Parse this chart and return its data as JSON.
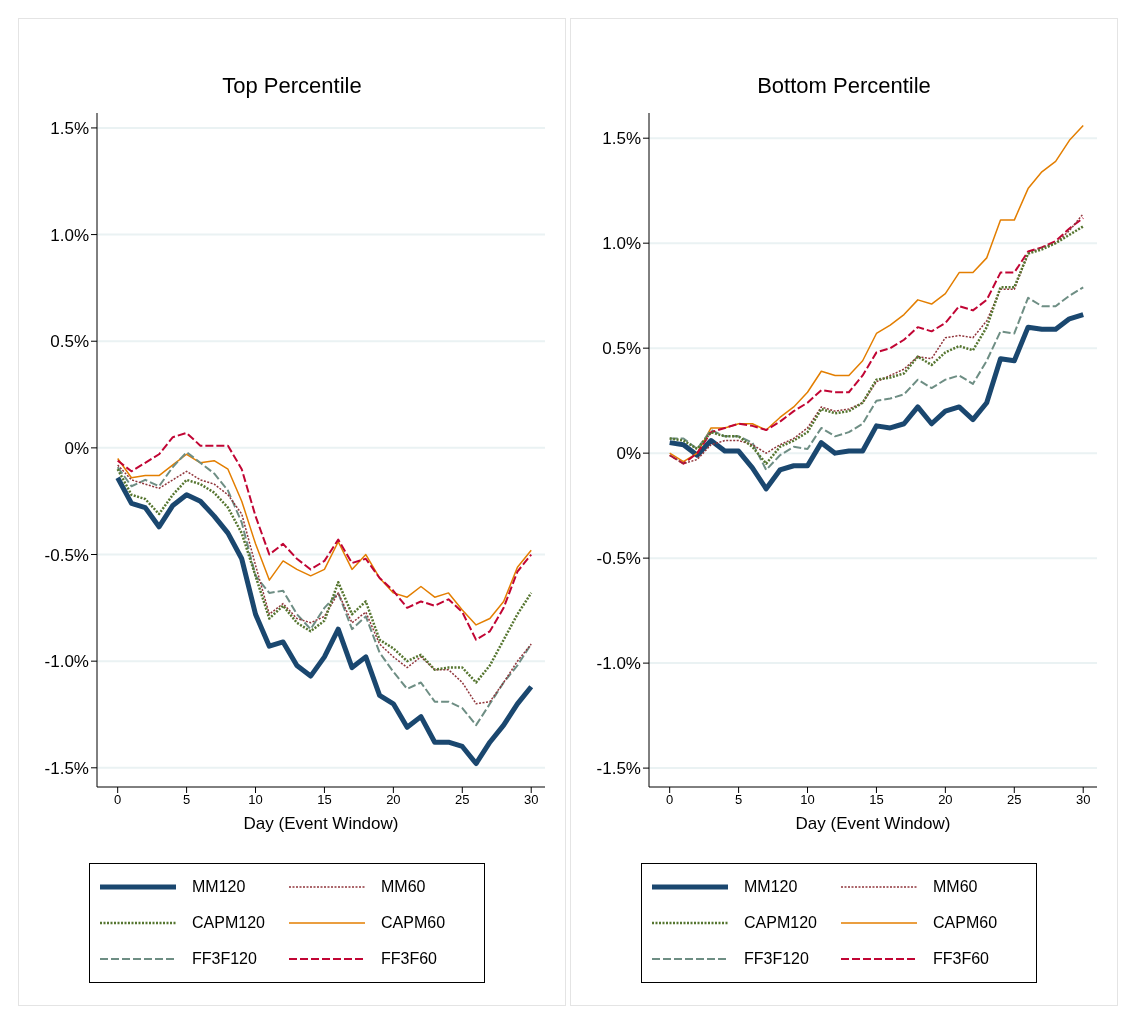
{
  "chart_data": [
    {
      "type": "line",
      "title": "Top Percentile",
      "xlabel": "Day (Event Window)",
      "x": [
        0,
        1,
        2,
        3,
        4,
        5,
        6,
        7,
        8,
        9,
        10,
        11,
        12,
        13,
        14,
        15,
        16,
        17,
        18,
        19,
        20,
        21,
        22,
        23,
        24,
        25,
        26,
        27,
        28,
        29,
        30
      ],
      "xlim": [
        -1.5,
        31
      ],
      "xticks": [
        0,
        5,
        10,
        15,
        20,
        25,
        30
      ],
      "ylim": [
        -1.59,
        1.57
      ],
      "yticks": [
        {
          "value": -1.5,
          "label": "-1.5%"
        },
        {
          "value": -1,
          "label": "-1.0%"
        },
        {
          "value": -0.5,
          "label": "-0.5%"
        },
        {
          "value": 0,
          "label": "0%"
        },
        {
          "value": 0.5,
          "label": "0.5%"
        },
        {
          "value": 1,
          "label": "1.0%"
        },
        {
          "value": 1.5,
          "label": "1.5%"
        }
      ],
      "grid": "y",
      "legend": "bottom",
      "marker": "none",
      "series": [
        {
          "name": "MM120",
          "color": "#1a476f",
          "line_style": "solid",
          "values": [
            -0.14,
            -0.26,
            -0.28,
            -0.37,
            -0.27,
            -0.22,
            -0.25,
            -0.32,
            -0.4,
            -0.52,
            -0.78,
            -0.93,
            -0.91,
            -1.02,
            -1.07,
            -0.98,
            -0.85,
            -1.03,
            -0.98,
            -1.16,
            -1.2,
            -1.31,
            -1.26,
            -1.38,
            -1.38,
            -1.4,
            -1.48,
            -1.38,
            -1.3,
            -1.2,
            -1.12
          ]
        },
        {
          "name": "MM60",
          "color": "#90353b",
          "line_style": "dotted",
          "values": [
            -0.08,
            -0.15,
            -0.17,
            -0.19,
            -0.15,
            -0.11,
            -0.15,
            -0.17,
            -0.22,
            -0.31,
            -0.55,
            -0.78,
            -0.73,
            -0.8,
            -0.82,
            -0.79,
            -0.68,
            -0.82,
            -0.77,
            -0.92,
            -0.98,
            -1.03,
            -0.98,
            -1.04,
            -1.04,
            -1.1,
            -1.2,
            -1.19,
            -1.1,
            -1.0,
            -0.92
          ]
        },
        {
          "name": "CAPM120",
          "color": "#55752f",
          "line_style": "dotted",
          "values": [
            -0.1,
            -0.22,
            -0.24,
            -0.31,
            -0.22,
            -0.15,
            -0.17,
            -0.21,
            -0.28,
            -0.4,
            -0.6,
            -0.8,
            -0.74,
            -0.82,
            -0.86,
            -0.81,
            -0.63,
            -0.78,
            -0.72,
            -0.9,
            -0.94,
            -1.0,
            -0.97,
            -1.04,
            -1.03,
            -1.03,
            -1.1,
            -1.02,
            -0.9,
            -0.78,
            -0.68
          ]
        },
        {
          "name": "CAPM60",
          "color": "#e37e00",
          "line_style": "solid",
          "values": [
            -0.05,
            -0.14,
            -0.13,
            -0.13,
            -0.08,
            -0.03,
            -0.07,
            -0.06,
            -0.1,
            -0.25,
            -0.45,
            -0.62,
            -0.53,
            -0.57,
            -0.6,
            -0.57,
            -0.44,
            -0.57,
            -0.5,
            -0.61,
            -0.68,
            -0.7,
            -0.65,
            -0.7,
            -0.68,
            -0.76,
            -0.83,
            -0.8,
            -0.72,
            -0.56,
            -0.48
          ]
        },
        {
          "name": "FF3F120",
          "color": "#6e8e84",
          "line_style": "dashed",
          "values": [
            -0.09,
            -0.18,
            -0.15,
            -0.18,
            -0.09,
            -0.02,
            -0.07,
            -0.12,
            -0.2,
            -0.35,
            -0.6,
            -0.68,
            -0.67,
            -0.78,
            -0.85,
            -0.75,
            -0.68,
            -0.85,
            -0.79,
            -0.96,
            -1.05,
            -1.13,
            -1.1,
            -1.19,
            -1.19,
            -1.22,
            -1.3,
            -1.2,
            -1.1,
            -1.02,
            -0.92
          ]
        },
        {
          "name": "FF3F60",
          "color": "#c10534",
          "line_style": "dashed",
          "values": [
            -0.06,
            -0.11,
            -0.07,
            -0.03,
            0.05,
            0.07,
            0.01,
            0.01,
            0.01,
            -0.1,
            -0.32,
            -0.5,
            -0.45,
            -0.52,
            -0.57,
            -0.53,
            -0.43,
            -0.54,
            -0.52,
            -0.61,
            -0.67,
            -0.75,
            -0.72,
            -0.74,
            -0.71,
            -0.77,
            -0.9,
            -0.86,
            -0.75,
            -0.58,
            -0.5
          ]
        }
      ]
    },
    {
      "type": "line",
      "title": "Bottom Percentile",
      "xlabel": "Day (Event Window)",
      "x": [
        0,
        1,
        2,
        3,
        4,
        5,
        6,
        7,
        8,
        9,
        10,
        11,
        12,
        13,
        14,
        15,
        16,
        17,
        18,
        19,
        20,
        21,
        22,
        23,
        24,
        25,
        26,
        27,
        28,
        29,
        30
      ],
      "xlim": [
        -1.5,
        31
      ],
      "xticks": [
        0,
        5,
        10,
        15,
        20,
        25,
        30
      ],
      "ylim": [
        -1.59,
        1.62
      ],
      "yticks": [
        {
          "value": -1.5,
          "label": "-1.5%"
        },
        {
          "value": -1,
          "label": "-1.0%"
        },
        {
          "value": -0.5,
          "label": "-0.5%"
        },
        {
          "value": 0,
          "label": "0%"
        },
        {
          "value": 0.5,
          "label": "0.5%"
        },
        {
          "value": 1,
          "label": "1.0%"
        },
        {
          "value": 1.5,
          "label": "1.5%"
        }
      ],
      "grid": "y",
      "legend": "bottom",
      "marker": "none",
      "series": [
        {
          "name": "MM120",
          "color": "#1a476f",
          "line_style": "solid",
          "values": [
            0.05,
            0.04,
            -0.01,
            0.06,
            0.01,
            0.01,
            -0.07,
            -0.17,
            -0.08,
            -0.06,
            -0.06,
            0.05,
            0.0,
            0.01,
            0.01,
            0.13,
            0.12,
            0.14,
            0.22,
            0.14,
            0.2,
            0.22,
            0.16,
            0.24,
            0.45,
            0.44,
            0.6,
            0.59,
            0.59,
            0.64,
            0.66
          ]
        },
        {
          "name": "MM60",
          "color": "#90353b",
          "line_style": "dotted",
          "values": [
            -0.01,
            -0.05,
            -0.03,
            0.04,
            0.06,
            0.06,
            0.04,
            0.0,
            0.04,
            0.07,
            0.12,
            0.22,
            0.2,
            0.21,
            0.24,
            0.34,
            0.37,
            0.4,
            0.46,
            0.45,
            0.55,
            0.56,
            0.55,
            0.63,
            0.78,
            0.78,
            0.95,
            0.98,
            1.0,
            1.06,
            1.14
          ]
        },
        {
          "name": "CAPM120",
          "color": "#55752f",
          "line_style": "dotted",
          "values": [
            0.07,
            0.06,
            0.02,
            0.1,
            0.08,
            0.08,
            0.03,
            -0.05,
            0.03,
            0.06,
            0.1,
            0.21,
            0.19,
            0.2,
            0.24,
            0.35,
            0.36,
            0.38,
            0.46,
            0.42,
            0.48,
            0.51,
            0.49,
            0.6,
            0.79,
            0.79,
            0.95,
            0.97,
            1.0,
            1.04,
            1.08
          ]
        },
        {
          "name": "CAPM60",
          "color": "#e37e00",
          "line_style": "solid",
          "values": [
            0.0,
            -0.04,
            0.0,
            0.12,
            0.12,
            0.14,
            0.14,
            0.11,
            0.17,
            0.22,
            0.29,
            0.39,
            0.37,
            0.37,
            0.44,
            0.57,
            0.61,
            0.66,
            0.73,
            0.71,
            0.76,
            0.86,
            0.86,
            0.93,
            1.11,
            1.11,
            1.26,
            1.34,
            1.39,
            1.49,
            1.56
          ]
        },
        {
          "name": "FF3F120",
          "color": "#6e8e84",
          "line_style": "dashed",
          "values": [
            0.07,
            0.07,
            0.02,
            0.11,
            0.08,
            0.08,
            0.05,
            -0.08,
            -0.01,
            0.03,
            0.02,
            0.12,
            0.08,
            0.1,
            0.14,
            0.25,
            0.26,
            0.28,
            0.35,
            0.31,
            0.35,
            0.37,
            0.33,
            0.44,
            0.58,
            0.57,
            0.74,
            0.7,
            0.7,
            0.75,
            0.79
          ]
        },
        {
          "name": "FF3F60",
          "color": "#c10534",
          "line_style": "dashed",
          "values": [
            -0.01,
            -0.05,
            0.0,
            0.1,
            0.12,
            0.14,
            0.13,
            0.11,
            0.15,
            0.2,
            0.24,
            0.3,
            0.29,
            0.29,
            0.37,
            0.48,
            0.5,
            0.54,
            0.6,
            0.58,
            0.62,
            0.7,
            0.68,
            0.73,
            0.86,
            0.86,
            0.96,
            0.98,
            1.01,
            1.07,
            1.12
          ]
        }
      ]
    }
  ]
}
